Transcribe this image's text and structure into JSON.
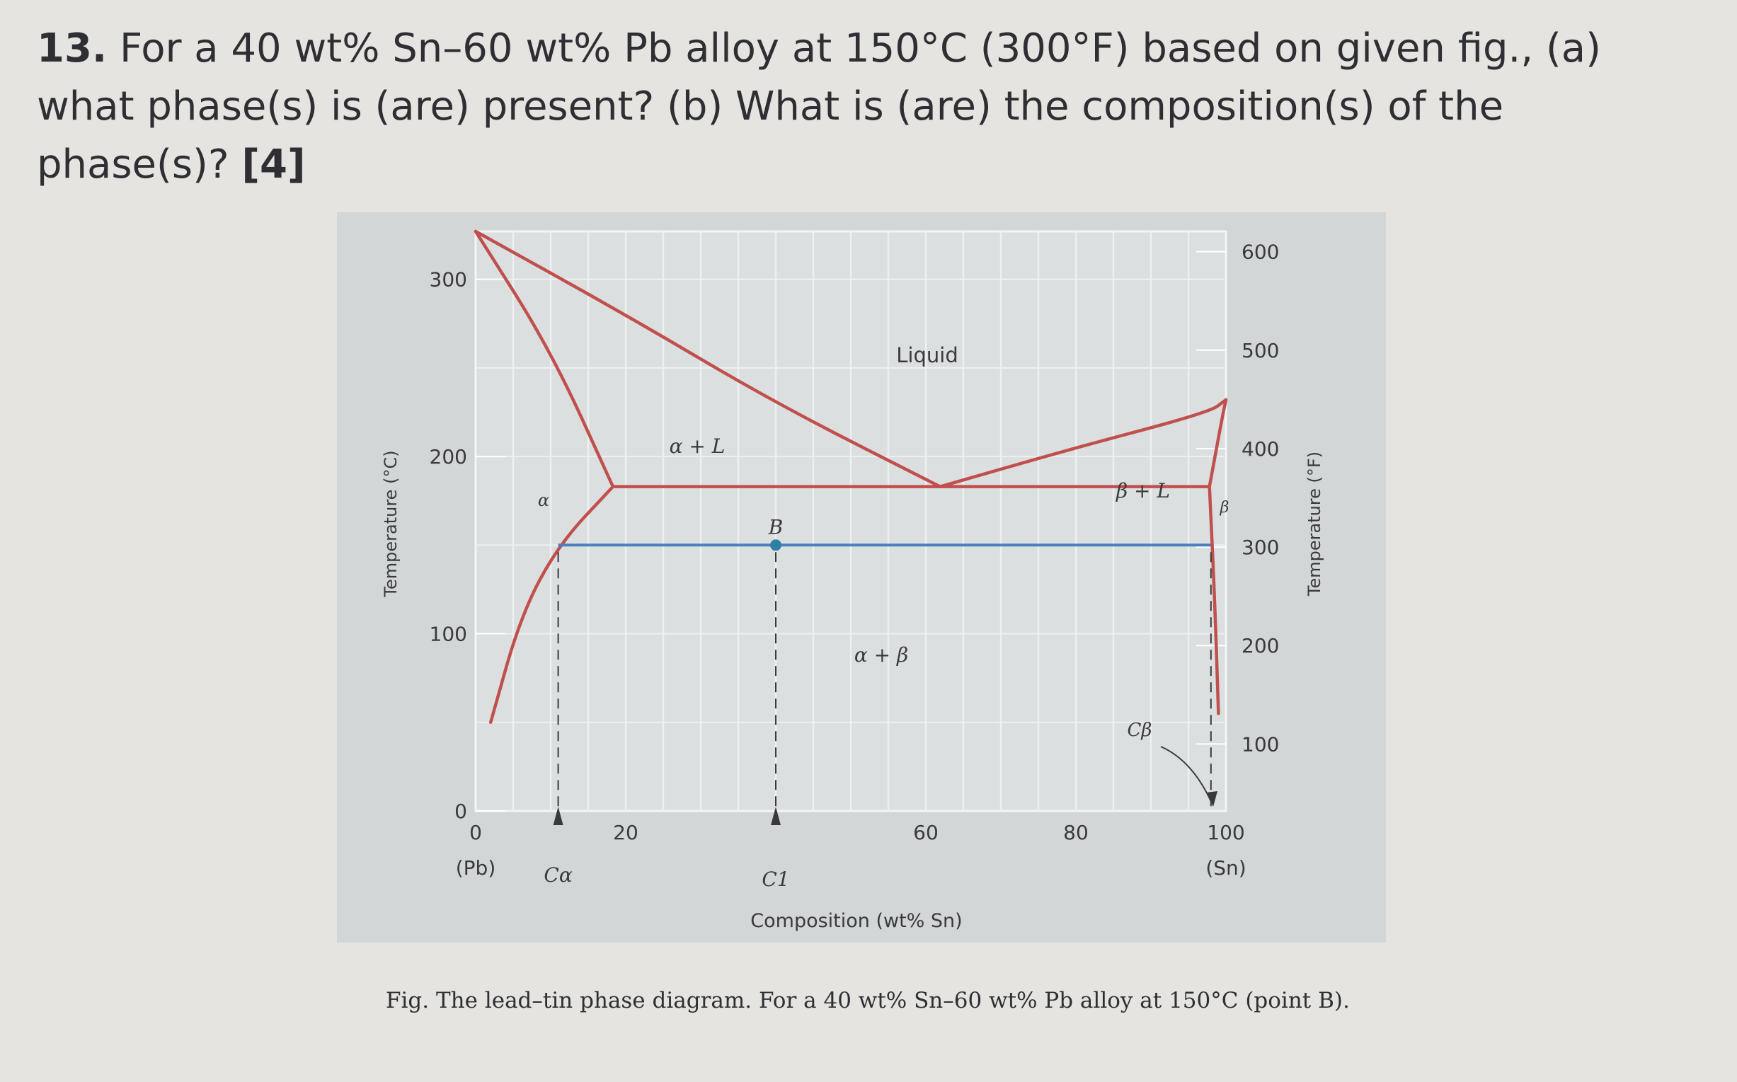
{
  "question": {
    "number": "13.",
    "text": " For a 40 wt% Sn–60 wt% Pb alloy at 150°C (300°F) based on given fig., (a) what phase(s) is (are) present? (b) What is (are) the composition(s) of the phase(s)? ",
    "marks": "[4]"
  },
  "figure": {
    "x_axis_label": "Composition (wt% Sn)",
    "y_left_label": "Temperature (°C)",
    "y_right_label": "Temperature (°F)",
    "x_ticks": [
      "0",
      "20",
      "60",
      "80",
      "100"
    ],
    "x_end_labels": {
      "left": "(Pb)",
      "right": "(Sn)"
    },
    "y_left_ticks": [
      "0",
      "100",
      "200",
      "300"
    ],
    "y_right_ticks": [
      "100",
      "200",
      "300",
      "400",
      "500",
      "600"
    ],
    "region_labels": {
      "liquid": "Liquid",
      "alpha_liquid": "α + L",
      "alpha": "α",
      "beta_liquid": "β + L",
      "beta": "β",
      "alpha_beta": "α + β"
    },
    "point_label": "B",
    "marker_labels": {
      "c_alpha": "Cα",
      "c1": "C1",
      "c_beta": "Cβ"
    },
    "colors": {
      "phase_lines": "#c0504d",
      "tie_line": "#4a7fc1",
      "panel": "#d3d6d7",
      "grid": "#eef0f0"
    }
  },
  "chart_data": {
    "type": "line",
    "xlabel": "Composition (wt% Sn)",
    "ylabel": "Temperature (°C)",
    "ylabel_right": "Temperature (°F)",
    "xlim": [
      0,
      100
    ],
    "ylim": [
      0,
      327
    ],
    "ylim_right_F": [
      32,
      620
    ],
    "grid": true,
    "series": [
      {
        "role": "liquidus-left",
        "x": [
          0,
          20,
          40,
          61.9
        ],
        "y": [
          327,
          280,
          230,
          183
        ]
      },
      {
        "role": "liquidus-right",
        "x": [
          61.9,
          80,
          97.8,
          100
        ],
        "y": [
          183,
          205,
          225,
          232
        ]
      },
      {
        "role": "solidus-alpha",
        "x": [
          0,
          10,
          18.3
        ],
        "y": [
          327,
          260,
          183
        ]
      },
      {
        "role": "solvus-alpha",
        "x": [
          18.3,
          11,
          6,
          2
        ],
        "y": [
          183,
          150,
          110,
          50
        ]
      },
      {
        "role": "eutectic",
        "x": [
          18.3,
          97.8
        ],
        "y": [
          183,
          183
        ]
      },
      {
        "role": "solidus-beta",
        "x": [
          97.8,
          99.5,
          100
        ],
        "y": [
          183,
          222,
          232
        ]
      },
      {
        "role": "solvus-beta",
        "x": [
          97.8,
          98.5,
          99
        ],
        "y": [
          183,
          120,
          55
        ]
      },
      {
        "role": "tie-line",
        "x": [
          11,
          98
        ],
        "y": [
          150,
          150
        ]
      }
    ],
    "points": [
      {
        "label": "B",
        "x": 40,
        "y": 150
      }
    ],
    "markers": [
      {
        "label": "Cα",
        "x": 11
      },
      {
        "label": "C1",
        "x": 40
      },
      {
        "label": "Cβ",
        "x": 98
      }
    ]
  },
  "caption": "Fig. The lead–tin phase diagram. For a 40 wt% Sn–60 wt% Pb alloy at 150°C (point B)."
}
